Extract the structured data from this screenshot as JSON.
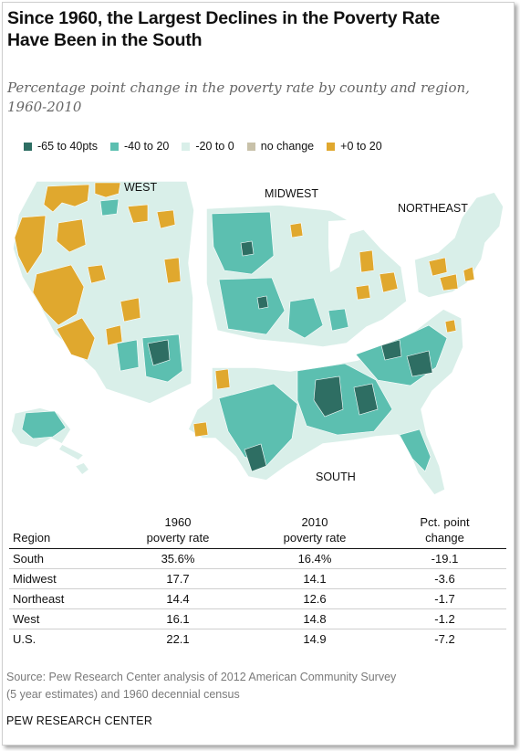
{
  "title_line1": "Since 1960, the Largest Declines in the Poverty Rate",
  "title_line2": "Have Been in the South",
  "subtitle_line1": "Percentage point change in the poverty rate by county and region,",
  "subtitle_line2": "1960-2010",
  "legend": [
    {
      "label": "-65 to 40pts",
      "color": "#2e6e63"
    },
    {
      "label": "-40 to 20",
      "color": "#5cbfb0"
    },
    {
      "label": "-20 to 0",
      "color": "#d9efe9"
    },
    {
      "label": "no change",
      "color": "#c8c1a9"
    },
    {
      "label": "+0 to 20",
      "color": "#e0a82e"
    }
  ],
  "regions": {
    "west": "WEST",
    "midwest": "MIDWEST",
    "northeast": "NORTHEAST",
    "south": "SOUTH"
  },
  "table": {
    "headers": {
      "region": "Region",
      "col1_line1": "1960",
      "col1_line2": "poverty rate",
      "col2_line1": "2010",
      "col2_line2": "poverty rate",
      "col3_line1": "Pct. point",
      "col3_line2": "change"
    },
    "rows": [
      {
        "region": "South",
        "rate_1960": "35.6%",
        "rate_2010": "16.4%",
        "change": "-19.1"
      },
      {
        "region": "Midwest",
        "rate_1960": "17.7",
        "rate_2010": "14.1",
        "change": "-3.6"
      },
      {
        "region": "Northeast",
        "rate_1960": "14.4",
        "rate_2010": "12.6",
        "change": "-1.7"
      },
      {
        "region": "West",
        "rate_1960": "16.1",
        "rate_2010": "14.8",
        "change": "-1.2"
      },
      {
        "region": "U.S.",
        "rate_1960": "22.1",
        "rate_2010": "14.9",
        "change": "-7.2"
      }
    ]
  },
  "source_line1": "Source: Pew Research Center analysis of 2012 American Community Survey",
  "source_line2": "(5 year estimates) and 1960 decennial census",
  "brand": "PEW RESEARCH CENTER"
}
